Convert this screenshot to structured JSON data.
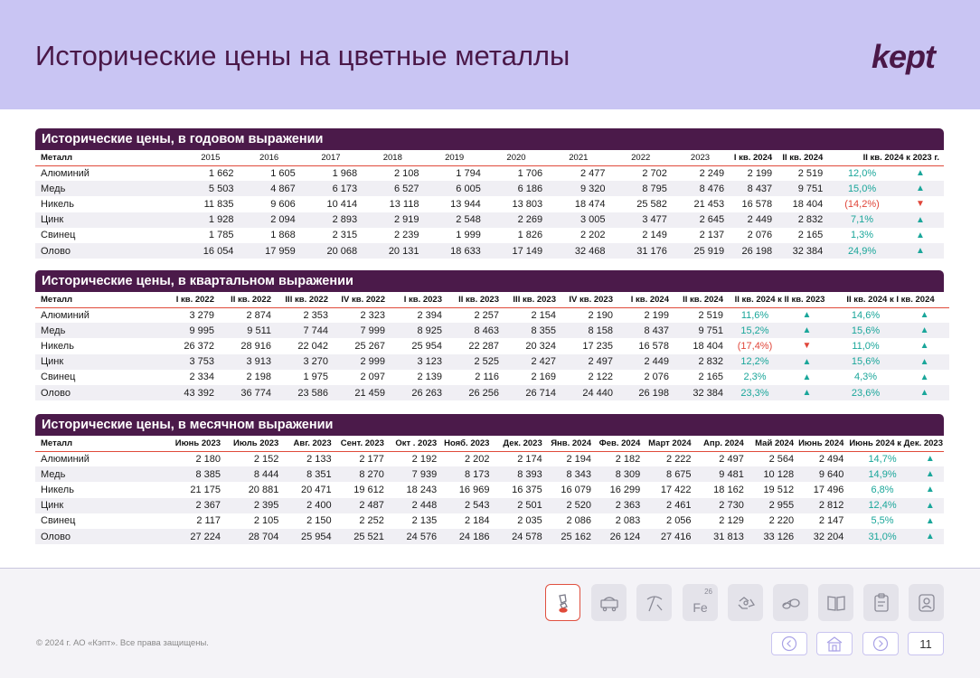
{
  "header": {
    "title": "Исторические цены на цветные металлы",
    "logo": "kept"
  },
  "colors": {
    "header_bg": "#c9c5f3",
    "section_bar": "#4b1a4a",
    "positive": "#1aa69a",
    "negative": "#e0463a"
  },
  "annual": {
    "title": "Исторические цены, в годовом выражении",
    "name_col": "Металл",
    "columns": [
      "2015",
      "2016",
      "2017",
      "2018",
      "2019",
      "2020",
      "2021",
      "2022",
      "2023",
      "I кв. 2024",
      "II кв. 2024",
      "II кв. 2024 к 2023 г."
    ],
    "rows": [
      {
        "name": "Алюминий",
        "values": [
          "1 662",
          "1 605",
          "1 968",
          "2 108",
          "1 794",
          "1 706",
          "2 477",
          "2 702",
          "2 249",
          "2 199",
          "2 519"
        ],
        "change": "12,0%",
        "up": true
      },
      {
        "name": "Медь",
        "values": [
          "5 503",
          "4 867",
          "6 173",
          "6 527",
          "6 005",
          "6 186",
          "9 320",
          "8 795",
          "8 476",
          "8 437",
          "9 751"
        ],
        "change": "15,0%",
        "up": true
      },
      {
        "name": "Никель",
        "values": [
          "11 835",
          "9 606",
          "10 414",
          "13 118",
          "13 944",
          "13 803",
          "18 474",
          "25 582",
          "21 453",
          "16 578",
          "18 404"
        ],
        "change": "(14,2%)",
        "up": false
      },
      {
        "name": "Цинк",
        "values": [
          "1 928",
          "2 094",
          "2 893",
          "2 919",
          "2 548",
          "2 269",
          "3 005",
          "3 477",
          "2 645",
          "2 449",
          "2 832"
        ],
        "change": "7,1%",
        "up": true
      },
      {
        "name": "Свинец",
        "values": [
          "1 785",
          "1 868",
          "2 315",
          "2 239",
          "1 999",
          "1 826",
          "2 202",
          "2 149",
          "2 137",
          "2 076",
          "2 165"
        ],
        "change": "1,3%",
        "up": true
      },
      {
        "name": "Олово",
        "values": [
          "16 054",
          "17 959",
          "20 068",
          "20 131",
          "18 633",
          "17 149",
          "32 468",
          "31 176",
          "25 919",
          "26 198",
          "32 384"
        ],
        "change": "24,9%",
        "up": true
      }
    ]
  },
  "quarterly": {
    "title": "Исторические цены, в квартальном выражении",
    "name_col": "Металл",
    "columns": [
      "I кв. 2022",
      "II кв. 2022",
      "III кв. 2022",
      "IV кв. 2022",
      "I кв. 2023",
      "II кв. 2023",
      "III кв. 2023",
      "IV кв. 2023",
      "I кв. 2024",
      "II кв. 2024",
      "II кв. 2024 к II кв. 2023",
      "II кв. 2024 к I кв. 2024"
    ],
    "rows": [
      {
        "name": "Алюминий",
        "values": [
          "3 279",
          "2 874",
          "2 353",
          "2 323",
          "2 394",
          "2 257",
          "2 154",
          "2 190",
          "2 199",
          "2 519"
        ],
        "change1": "11,6%",
        "up1": true,
        "change2": "14,6%",
        "up2": true
      },
      {
        "name": "Медь",
        "values": [
          "9 995",
          "9 511",
          "7 744",
          "7 999",
          "8 925",
          "8 463",
          "8 355",
          "8 158",
          "8 437",
          "9 751"
        ],
        "change1": "15,2%",
        "up1": true,
        "change2": "15,6%",
        "up2": true
      },
      {
        "name": "Никель",
        "values": [
          "26 372",
          "28 916",
          "22 042",
          "25 267",
          "25 954",
          "22 287",
          "20 324",
          "17 235",
          "16 578",
          "18 404"
        ],
        "change1": "(17,4%)",
        "up1": false,
        "change2": "11,0%",
        "up2": true
      },
      {
        "name": "Цинк",
        "values": [
          "3 753",
          "3 913",
          "3 270",
          "2 999",
          "3 123",
          "2 525",
          "2 427",
          "2 497",
          "2 449",
          "2 832"
        ],
        "change1": "12,2%",
        "up1": true,
        "change2": "15,6%",
        "up2": true
      },
      {
        "name": "Свинец",
        "values": [
          "2 334",
          "2 198",
          "1 975",
          "2 097",
          "2 139",
          "2 116",
          "2 169",
          "2 122",
          "2 076",
          "2 165"
        ],
        "change1": "2,3%",
        "up1": true,
        "change2": "4,3%",
        "up2": true
      },
      {
        "name": "Олово",
        "values": [
          "43 392",
          "36 774",
          "23 586",
          "21 459",
          "26 263",
          "26 256",
          "26 714",
          "24 440",
          "26 198",
          "32 384"
        ],
        "change1": "23,3%",
        "up1": true,
        "change2": "23,6%",
        "up2": true
      }
    ]
  },
  "monthly": {
    "title": "Исторические цены, в месячном выражении",
    "name_col": "Металл",
    "columns": [
      "Июнь 2023",
      "Июль 2023",
      "Авг. 2023",
      "Сент. 2023",
      "Окт . 2023",
      "Нояб. 2023",
      "Дек. 2023",
      "Янв. 2024",
      "Фев. 2024",
      "Март 2024",
      "Апр. 2024",
      "Май 2024",
      "Июнь 2024",
      "Июнь 2024 к Дек. 2023"
    ],
    "rows": [
      {
        "name": "Алюминий",
        "values": [
          "2 180",
          "2 152",
          "2 133",
          "2 177",
          "2 192",
          "2 202",
          "2 174",
          "2 194",
          "2 182",
          "2 222",
          "2 497",
          "2 564",
          "2 494"
        ],
        "change": "14,7%",
        "up": true
      },
      {
        "name": "Медь",
        "values": [
          "8 385",
          "8 444",
          "8 351",
          "8 270",
          "7 939",
          "8 173",
          "8 393",
          "8 343",
          "8 309",
          "8 675",
          "9 481",
          "10 128",
          "9 640"
        ],
        "change": "14,9%",
        "up": true
      },
      {
        "name": "Никель",
        "values": [
          "21 175",
          "20 881",
          "20 471",
          "19 612",
          "18 243",
          "16 969",
          "16 375",
          "16 079",
          "16 299",
          "17 422",
          "18 162",
          "19 512",
          "17 496"
        ],
        "change": "6,8%",
        "up": true
      },
      {
        "name": "Цинк",
        "values": [
          "2 367",
          "2 395",
          "2 400",
          "2 487",
          "2 448",
          "2 543",
          "2 501",
          "2 520",
          "2 363",
          "2 461",
          "2 730",
          "2 955",
          "2 812"
        ],
        "change": "12,4%",
        "up": true
      },
      {
        "name": "Свинец",
        "values": [
          "2 117",
          "2 105",
          "2 150",
          "2 252",
          "2 135",
          "2 184",
          "2 035",
          "2 086",
          "2 083",
          "2 056",
          "2 129",
          "2 220",
          "2 147"
        ],
        "change": "5,5%",
        "up": true
      },
      {
        "name": "Олово",
        "values": [
          "27 224",
          "28 704",
          "25 954",
          "25 521",
          "24 576",
          "24 186",
          "24 578",
          "25 162",
          "26 124",
          "27 416",
          "31 813",
          "33 126",
          "32 204"
        ],
        "change": "31,0%",
        "up": true
      }
    ]
  },
  "footer": {
    "copyright": "© 2024 г. АО «Кэпт». Все права защищены.",
    "page_number": "11",
    "fe_symbol": "Fe",
    "fe_number": "26",
    "nav_icons": [
      "metals-hand-icon",
      "coal-cart-icon",
      "mining-pick-icon",
      "iron-element-icon",
      "recycling-icon",
      "pipes-icon",
      "book-icon",
      "clipboard-icon",
      "user-card-icon"
    ]
  }
}
